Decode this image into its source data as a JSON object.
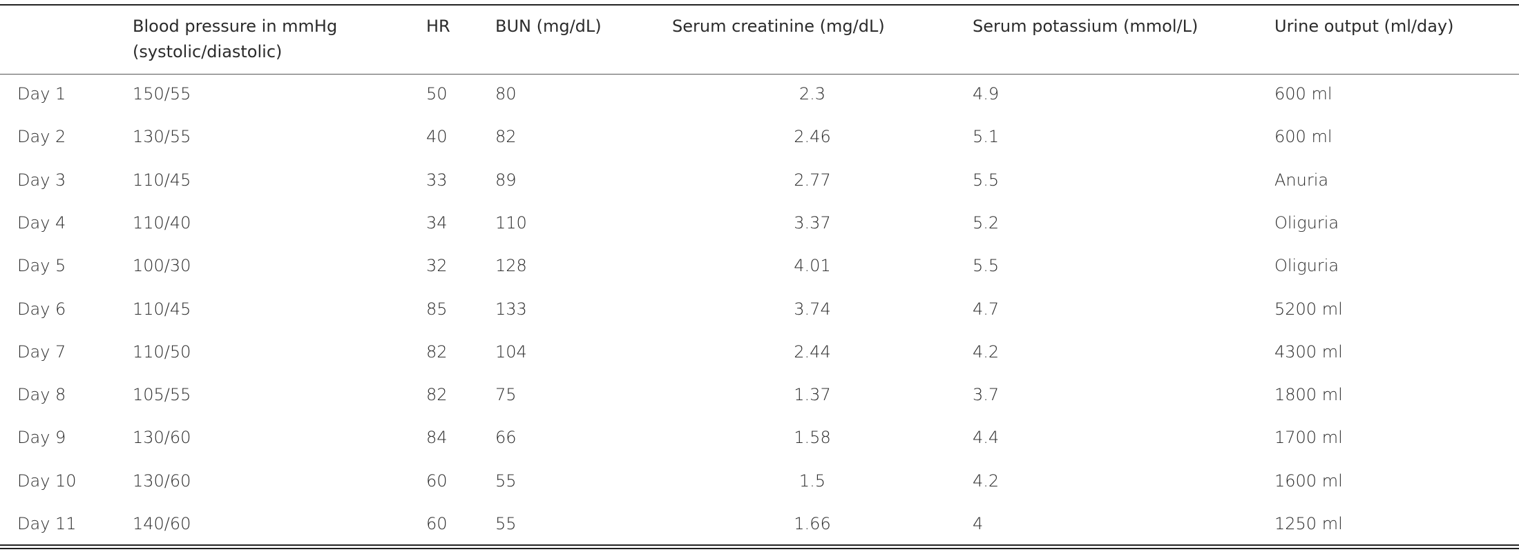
{
  "table": {
    "header": [
      "Blood pressure in mmHg (systolic/diastolic)",
      "HR",
      "BUN (mg/dL)",
      "Serum creatinine (mg/dL)",
      "Serum potassium (mmol/L)",
      "Urine output (ml/day)"
    ],
    "rows": [
      [
        "Day 1",
        "150/55",
        "50",
        "80",
        "2.3",
        "4.9",
        "600 ml"
      ],
      [
        "Day 2",
        "130/55",
        "40",
        "82",
        "2.46",
        "5.1",
        "600 ml"
      ],
      [
        "Day 3",
        "110/45",
        "33",
        "89",
        "2.77",
        "5.5",
        "Anuria"
      ],
      [
        "Day 4",
        "110/40",
        "34",
        "110",
        "3.37",
        "5.2",
        "Oliguria"
      ],
      [
        "Day 5",
        "100/30",
        "32",
        "128",
        "4.01",
        "5.5",
        "Oliguria"
      ],
      [
        "Day 6",
        "110/45",
        "85",
        "133",
        "3.74",
        "4.7",
        "5200 ml"
      ],
      [
        "Day 7",
        "110/50",
        "82",
        "104",
        "2.44",
        "4.2",
        "4300 ml"
      ],
      [
        "Day 8",
        "105/55",
        "82",
        "75",
        "1.37",
        "3.7",
        "1800 ml"
      ],
      [
        "Day 9",
        "130/60",
        "84",
        "66",
        "1.58",
        "4.4",
        "1700 ml"
      ],
      [
        "Day 10",
        "130/60",
        "60",
        "55",
        "1.5",
        "4.2",
        "1600 ml"
      ],
      [
        "Day 11",
        "140/60",
        "60",
        "55",
        "1.66",
        "4",
        "1250 ml"
      ]
    ]
  }
}
